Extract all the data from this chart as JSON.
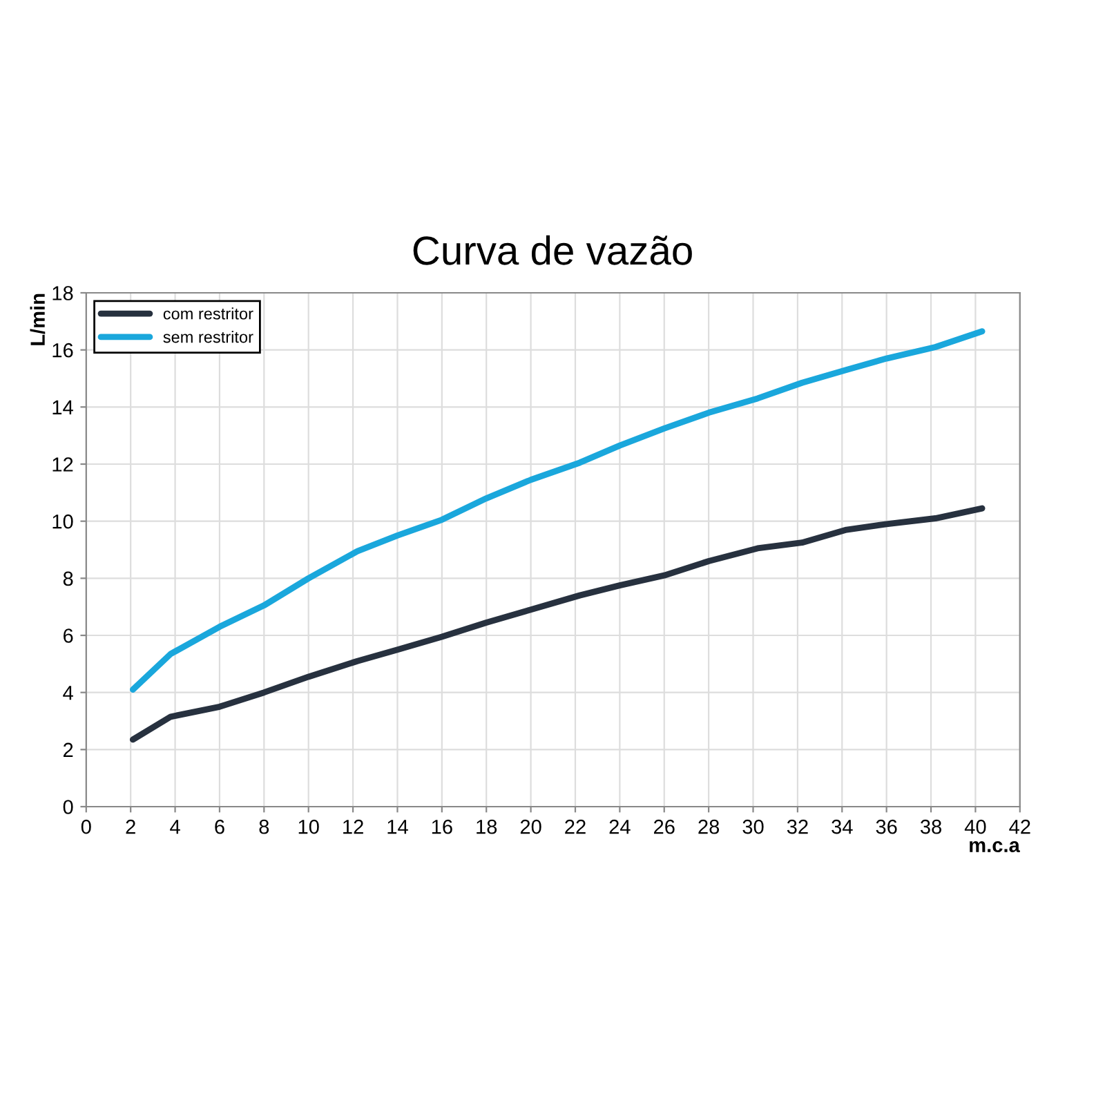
{
  "chart_data": {
    "type": "line",
    "title": "Curva de vazão",
    "xlabel": "m.c.a",
    "ylabel": "L/min",
    "x": [
      2.1,
      3.8,
      6,
      8,
      10,
      12.2,
      14,
      16,
      18,
      20,
      22.2,
      24,
      26,
      28,
      30.2,
      32.2,
      34.2,
      36,
      38.2,
      40.3
    ],
    "series": [
      {
        "name": "com restritor",
        "color": "#27313f",
        "values": [
          2.35,
          3.15,
          3.5,
          4.0,
          4.55,
          5.1,
          5.5,
          5.95,
          6.45,
          6.9,
          7.4,
          7.75,
          8.1,
          8.6,
          9.05,
          9.25,
          9.7,
          9.9,
          10.1,
          10.45
        ]
      },
      {
        "name": "sem restritor",
        "color": "#1aa7dc",
        "values": [
          4.1,
          5.35,
          6.3,
          7.05,
          8.0,
          8.95,
          9.5,
          10.05,
          10.8,
          11.45,
          12.05,
          12.65,
          13.25,
          13.8,
          14.3,
          14.85,
          15.3,
          15.7,
          16.1,
          16.65
        ]
      }
    ],
    "xlim": [
      0,
      42
    ],
    "xticks": [
      0,
      2,
      4,
      6,
      8,
      10,
      12,
      14,
      16,
      18,
      20,
      22,
      24,
      26,
      28,
      30,
      32,
      34,
      36,
      38,
      40,
      42
    ],
    "ylim": [
      0,
      18
    ],
    "yticks": [
      0,
      2,
      4,
      6,
      8,
      10,
      12,
      14,
      16,
      18
    ],
    "grid": true,
    "legend": "top left",
    "marker": "none",
    "line_style": "solid"
  }
}
